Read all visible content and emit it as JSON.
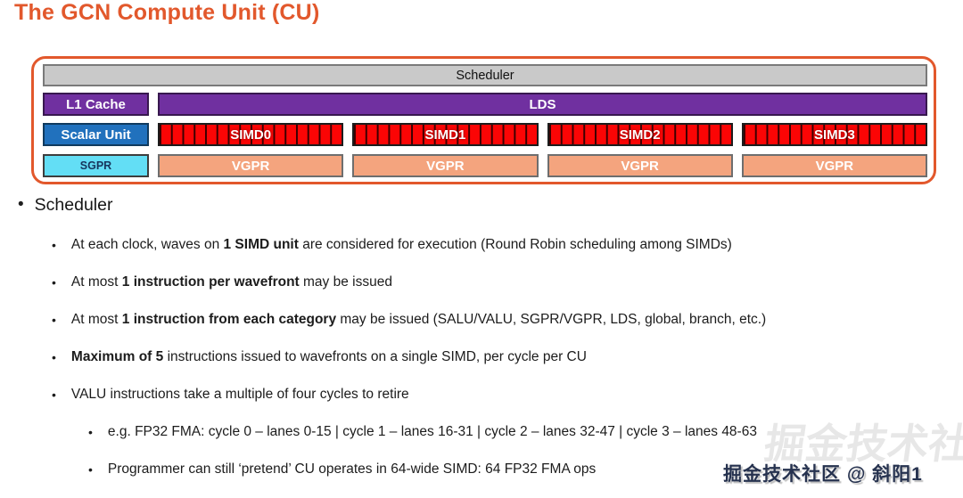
{
  "title": "The GCN Compute Unit (CU)",
  "colors": {
    "accent-orange": "#E2582C",
    "scheduler-gray": "#C9C9C9",
    "purple": "#7030A0",
    "blue": "#2171BD",
    "cyan": "#63DEF5",
    "red": "#FB0505",
    "salmon": "#F4A47E",
    "text-dark": "#1F1F1F",
    "watermark-navy": "#26324F"
  },
  "diagram": {
    "scheduler_label": "Scheduler",
    "l1_label": "L1 Cache",
    "lds_label": "LDS",
    "scalar_label": "Scalar Unit",
    "sgpr_label": "SGPR",
    "simd_labels": [
      "SIMD0",
      "SIMD1",
      "SIMD2",
      "SIMD3"
    ],
    "vgpr_labels": [
      "VGPR",
      "VGPR",
      "VGPR",
      "VGPR"
    ],
    "lanes_per_simd": 16
  },
  "bullets": {
    "heading": "Scheduler",
    "items": [
      {
        "level": 2,
        "segments": [
          {
            "t": "At each clock, waves on "
          },
          {
            "t": "1 SIMD unit",
            "b": true
          },
          {
            "t": " are considered for execution (Round Robin scheduling among SIMDs)"
          }
        ]
      },
      {
        "level": 2,
        "segments": [
          {
            "t": "At most "
          },
          {
            "t": "1 instruction per wavefront",
            "b": true
          },
          {
            "t": " may be issued"
          }
        ]
      },
      {
        "level": 2,
        "segments": [
          {
            "t": "At most "
          },
          {
            "t": "1 instruction from each category",
            "b": true
          },
          {
            "t": " may be issued (SALU/VALU, SGPR/VGPR, LDS, global, branch, etc.)"
          }
        ]
      },
      {
        "level": 2,
        "segments": [
          {
            "t": "Maximum of 5",
            "b": true
          },
          {
            "t": " instructions issued to wavefronts on a single SIMD, per cycle per CU"
          }
        ]
      },
      {
        "level": 2,
        "segments": [
          {
            "t": "VALU instructions take a multiple of four cycles to retire"
          }
        ]
      },
      {
        "level": 3,
        "segments": [
          {
            "t": "e.g. FP32 FMA: cycle 0 – lanes 0-15 | cycle 1 – lanes 16-31 | cycle 2 – lanes 32-47 | cycle 3 – lanes 48-63"
          }
        ]
      },
      {
        "level": 3,
        "segments": [
          {
            "t": "Programmer can still ‘pretend’ CU operates in 64-wide SIMD: 64 FP32 FMA ops"
          }
        ]
      }
    ]
  },
  "watermark": {
    "text": "掘金技术社区 @ 斜阳1"
  }
}
